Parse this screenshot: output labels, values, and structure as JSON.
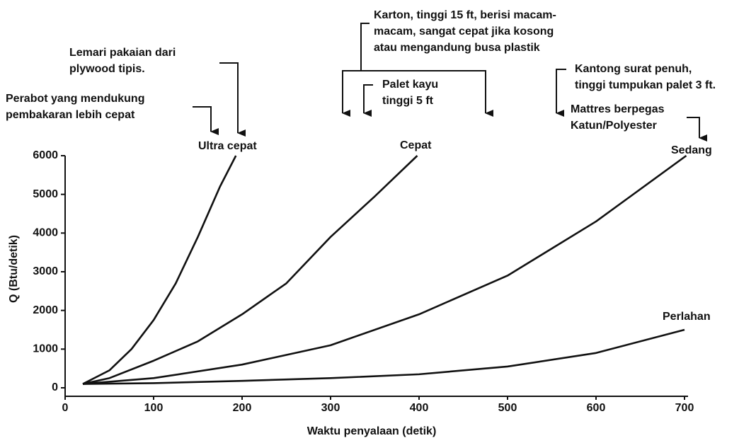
{
  "chart_data": {
    "type": "line",
    "xlabel": "Waktu penyalaan (detik)",
    "ylabel": "Q (Btu/detik)",
    "xlim": [
      0,
      700
    ],
    "ylim": [
      0,
      6000
    ],
    "xticks": [
      0,
      100,
      200,
      300,
      400,
      500,
      600,
      700
    ],
    "yticks": [
      0,
      1000,
      2000,
      3000,
      4000,
      5000,
      6000
    ],
    "grid": false,
    "series": [
      {
        "name": "Ultra cepat",
        "color": "#111111",
        "x": [
          20,
          50,
          75,
          100,
          125,
          150,
          175,
          193
        ],
        "values": [
          100,
          450,
          1000,
          1750,
          2700,
          3900,
          5200,
          6000
        ]
      },
      {
        "name": "Cepat",
        "color": "#111111",
        "x": [
          20,
          50,
          100,
          150,
          200,
          250,
          300,
          350,
          398
        ],
        "values": [
          100,
          250,
          700,
          1200,
          1900,
          2700,
          3900,
          4950,
          6000
        ]
      },
      {
        "name": "Sedang",
        "color": "#111111",
        "x": [
          20,
          100,
          200,
          300,
          400,
          500,
          600,
          702
        ],
        "values": [
          100,
          250,
          600,
          1100,
          1900,
          2900,
          4300,
          6000
        ]
      },
      {
        "name": "Perlahan",
        "color": "#111111",
        "x": [
          20,
          100,
          200,
          300,
          400,
          500,
          600,
          700
        ],
        "values": [
          100,
          120,
          180,
          250,
          350,
          550,
          900,
          1500
        ]
      }
    ],
    "annotations": [
      {
        "lines": [
          "Perabot yang mendukung",
          "pembakaran lebih cepat"
        ]
      },
      {
        "lines": [
          "Lemari pakaian dari",
          "plywood tipis."
        ]
      },
      {
        "lines": [
          "Karton, tinggi 15 ft, berisi macam-",
          "macam, sangat cepat jika kosong",
          "atau mengandung busa plastik"
        ]
      },
      {
        "lines": [
          "Palet kayu",
          "tinggi 5 ft"
        ]
      },
      {
        "lines": [
          "Kantong surat penuh,",
          "tinggi tumpukan palet 3 ft."
        ]
      },
      {
        "lines": [
          "Mattres berpegas",
          "Katun/Polyester"
        ]
      }
    ]
  }
}
